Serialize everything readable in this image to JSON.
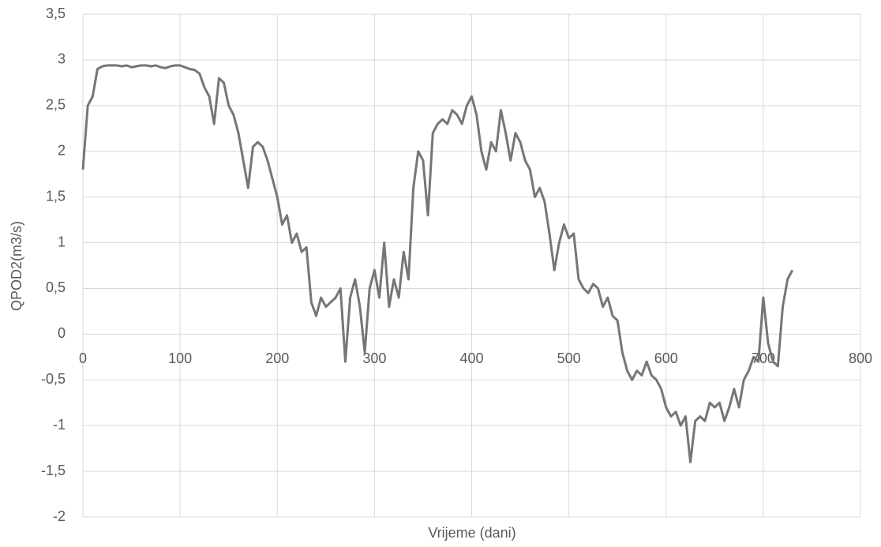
{
  "chart_data": {
    "type": "line",
    "x_label": "Vrijeme (dani)",
    "y_label": "QPOD2(m3/s)",
    "xlim": [
      0,
      800
    ],
    "xticks": [
      0,
      100,
      200,
      300,
      400,
      500,
      600,
      700,
      800
    ],
    "ylim": [
      -2,
      3.5
    ],
    "yticks": [
      -2,
      {
        "value": -1.5,
        "label": "-1,5"
      },
      -1,
      {
        "value": -0.5,
        "label": "-0,5"
      },
      0,
      {
        "value": 0.5,
        "label": "0,5"
      },
      1,
      {
        "value": 1.5,
        "label": "1,5"
      },
      2,
      {
        "value": 2.5,
        "label": "2,5"
      },
      3,
      {
        "value": 3.5,
        "label": "3,5"
      }
    ],
    "grid": true,
    "x": [
      0,
      5,
      10,
      15,
      20,
      25,
      30,
      35,
      40,
      45,
      50,
      55,
      60,
      65,
      70,
      75,
      80,
      85,
      90,
      95,
      100,
      105,
      110,
      115,
      120,
      125,
      130,
      135,
      140,
      145,
      150,
      155,
      160,
      165,
      170,
      175,
      180,
      185,
      190,
      195,
      200,
      205,
      210,
      215,
      220,
      225,
      230,
      235,
      240,
      245,
      250,
      255,
      260,
      265,
      270,
      275,
      280,
      285,
      290,
      295,
      300,
      305,
      310,
      315,
      320,
      325,
      330,
      335,
      340,
      345,
      350,
      355,
      360,
      365,
      370,
      375,
      380,
      385,
      390,
      395,
      400,
      405,
      410,
      415,
      420,
      425,
      430,
      435,
      440,
      445,
      450,
      455,
      460,
      465,
      470,
      475,
      480,
      485,
      490,
      495,
      500,
      505,
      510,
      515,
      520,
      525,
      530,
      535,
      540,
      545,
      550,
      555,
      560,
      565,
      570,
      575,
      580,
      585,
      590,
      595,
      600,
      605,
      610,
      615,
      620,
      625,
      630,
      635,
      640,
      645,
      650,
      655,
      660,
      665,
      670,
      675,
      680,
      685,
      690,
      695,
      700,
      705,
      710,
      715,
      720,
      725,
      730
    ],
    "series": [
      {
        "color": "#767676",
        "values": [
          1.8,
          2.5,
          2.6,
          2.9,
          2.93,
          2.94,
          2.94,
          2.94,
          2.93,
          2.94,
          2.92,
          2.93,
          2.94,
          2.94,
          2.93,
          2.94,
          2.92,
          2.91,
          2.93,
          2.94,
          2.94,
          2.92,
          2.9,
          2.89,
          2.85,
          2.7,
          2.6,
          2.3,
          2.8,
          2.75,
          2.5,
          2.4,
          2.2,
          1.9,
          1.6,
          2.05,
          2.1,
          2.05,
          1.9,
          1.7,
          1.5,
          1.2,
          1.3,
          1.0,
          1.1,
          0.9,
          0.95,
          0.35,
          0.2,
          0.4,
          0.3,
          0.35,
          0.4,
          0.5,
          -0.3,
          0.4,
          0.6,
          0.3,
          -0.2,
          0.5,
          0.7,
          0.4,
          1.0,
          0.3,
          0.6,
          0.4,
          0.9,
          0.6,
          1.6,
          2.0,
          1.9,
          1.3,
          2.2,
          2.3,
          2.35,
          2.3,
          2.45,
          2.4,
          2.3,
          2.5,
          2.6,
          2.4,
          2.0,
          1.8,
          2.1,
          2.0,
          2.45,
          2.2,
          1.9,
          2.2,
          2.1,
          1.9,
          1.8,
          1.5,
          1.6,
          1.45,
          1.1,
          0.7,
          1.0,
          1.2,
          1.05,
          1.1,
          0.6,
          0.5,
          0.45,
          0.55,
          0.5,
          0.3,
          0.4,
          0.2,
          0.15,
          -0.2,
          -0.4,
          -0.5,
          -0.4,
          -0.45,
          -0.3,
          -0.45,
          -0.5,
          -0.6,
          -0.8,
          -0.9,
          -0.85,
          -1.0,
          -0.9,
          -1.4,
          -0.95,
          -0.9,
          -0.95,
          -0.75,
          -0.8,
          -0.75,
          -0.95,
          -0.8,
          -0.6,
          -0.8,
          -0.5,
          -0.4,
          -0.25,
          -0.3,
          0.4,
          -0.1,
          -0.3,
          -0.35,
          0.3,
          0.6,
          0.7
        ]
      }
    ]
  }
}
